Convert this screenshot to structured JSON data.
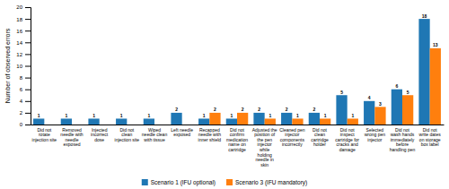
{
  "chart_data": {
    "type": "bar",
    "categories": [
      "Did not\nrotate\ninjection site",
      "Removed\nneedle with\nneedle\nexposed",
      "Injected\nincorrect\ndose",
      "Did not\nclean\ninjection site",
      "Wiped\nneedle clean\nwith tissue",
      "Left needle\nexposed",
      "Recapped\nneedle with\ninner shield",
      "Did not\nconfirm\nmedication\nname on\ncartridge",
      "Adjusted the\nposition of\nthe pen\ninjector\nwhile\nholding\nneedle in\nskin",
      "Cleaned pen\ninjector\ncomponents\nincorrectly",
      "Did not\nclean\ncartridge\nholder",
      "Did not\ninspect\ncartridge for\ncracks and\ndamage",
      "Selected\nwrong pen\ninjector",
      "Did not\nwash hands\nimmediately\nbefore\nhandling pen",
      "Did not\nwrite dates\non storage\nbox label"
    ],
    "series": [
      {
        "name": "Scenario 1 (IFU optional)",
        "values": [
          1,
          1,
          1,
          1,
          1,
          2,
          1,
          1,
          2,
          2,
          2,
          5,
          4,
          6,
          18
        ]
      },
      {
        "name": "Scenario 3 (IFU mandatory)",
        "values": [
          0,
          0,
          0,
          0,
          0,
          0,
          2,
          2,
          1,
          1,
          1,
          1,
          3,
          5,
          13
        ]
      }
    ],
    "y_label": "Number of observed errors",
    "ylim": [
      0,
      20
    ],
    "yticks": [
      0,
      2,
      4,
      6,
      8,
      10,
      12,
      14,
      16,
      18,
      20
    ],
    "data_labels": true,
    "grid": false,
    "legend": "bottom"
  }
}
